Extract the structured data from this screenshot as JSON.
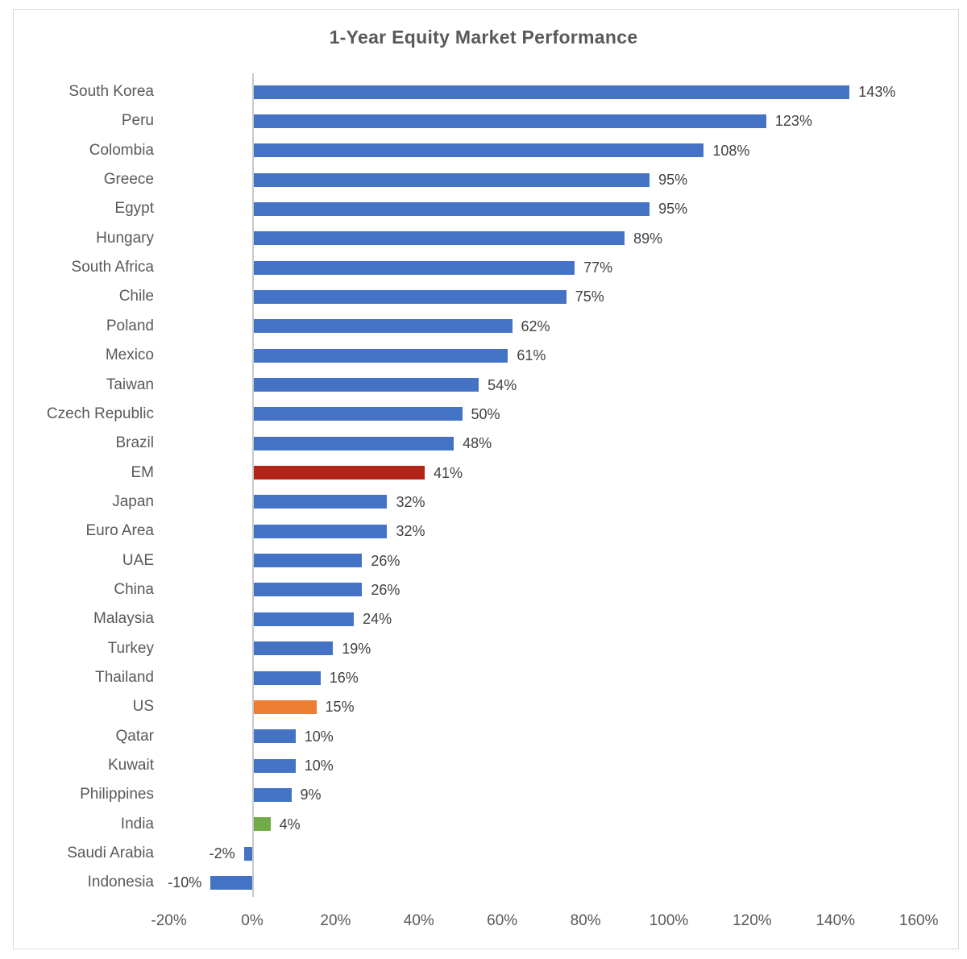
{
  "chart_data": {
    "type": "bar",
    "orientation": "horizontal",
    "title": "1-Year Equity Market Performance",
    "xlabel": "",
    "ylabel": "",
    "xlim": [
      -20,
      160
    ],
    "grid": false,
    "legend": false,
    "bars": [
      {
        "category": "South Korea",
        "value": 143,
        "label": "143%",
        "color": "#4472C4"
      },
      {
        "category": "Peru",
        "value": 123,
        "label": "123%",
        "color": "#4472C4"
      },
      {
        "category": "Colombia",
        "value": 108,
        "label": "108%",
        "color": "#4472C4"
      },
      {
        "category": "Greece",
        "value": 95,
        "label": "95%",
        "color": "#4472C4"
      },
      {
        "category": "Egypt",
        "value": 95,
        "label": "95%",
        "color": "#4472C4"
      },
      {
        "category": "Hungary",
        "value": 89,
        "label": "89%",
        "color": "#4472C4"
      },
      {
        "category": "South Africa",
        "value": 77,
        "label": "77%",
        "color": "#4472C4"
      },
      {
        "category": "Chile",
        "value": 75,
        "label": "75%",
        "color": "#4472C4"
      },
      {
        "category": "Poland",
        "value": 62,
        "label": "62%",
        "color": "#4472C4"
      },
      {
        "category": "Mexico",
        "value": 61,
        "label": "61%",
        "color": "#4472C4"
      },
      {
        "category": "Taiwan",
        "value": 54,
        "label": "54%",
        "color": "#4472C4"
      },
      {
        "category": "Czech Republic",
        "value": 50,
        "label": "50%",
        "color": "#4472C4"
      },
      {
        "category": "Brazil",
        "value": 48,
        "label": "48%",
        "color": "#4472C4"
      },
      {
        "category": "EM",
        "value": 41,
        "label": "41%",
        "color": "#B22417"
      },
      {
        "category": "Japan",
        "value": 32,
        "label": "32%",
        "color": "#4472C4"
      },
      {
        "category": "Euro Area",
        "value": 32,
        "label": "32%",
        "color": "#4472C4"
      },
      {
        "category": "UAE",
        "value": 26,
        "label": "26%",
        "color": "#4472C4"
      },
      {
        "category": "China",
        "value": 26,
        "label": "26%",
        "color": "#4472C4"
      },
      {
        "category": "Malaysia",
        "value": 24,
        "label": "24%",
        "color": "#4472C4"
      },
      {
        "category": "Turkey",
        "value": 19,
        "label": "19%",
        "color": "#4472C4"
      },
      {
        "category": "Thailand",
        "value": 16,
        "label": "16%",
        "color": "#4472C4"
      },
      {
        "category": "US",
        "value": 15,
        "label": "15%",
        "color": "#ED7D31"
      },
      {
        "category": "Qatar",
        "value": 10,
        "label": "10%",
        "color": "#4472C4"
      },
      {
        "category": "Kuwait",
        "value": 10,
        "label": "10%",
        "color": "#4472C4"
      },
      {
        "category": "Philippines",
        "value": 9,
        "label": "9%",
        "color": "#4472C4"
      },
      {
        "category": "India",
        "value": 4,
        "label": "4%",
        "color": "#70AD47"
      },
      {
        "category": "Saudi Arabia",
        "value": -2,
        "label": "-2%",
        "color": "#4472C4"
      },
      {
        "category": "Indonesia",
        "value": -10,
        "label": "-10%",
        "color": "#4472C4"
      }
    ],
    "x_ticks": [
      {
        "value": -20,
        "label": "-20%"
      },
      {
        "value": 0,
        "label": "0%"
      },
      {
        "value": 20,
        "label": "20%"
      },
      {
        "value": 40,
        "label": "40%"
      },
      {
        "value": 60,
        "label": "60%"
      },
      {
        "value": 80,
        "label": "80%"
      },
      {
        "value": 100,
        "label": "100%"
      },
      {
        "value": 120,
        "label": "120%"
      },
      {
        "value": 140,
        "label": "140%"
      },
      {
        "value": 160,
        "label": "160%"
      }
    ]
  },
  "palette": {
    "bar_default": "#4472C4",
    "bar_em_highlight": "#B22417",
    "bar_us_highlight": "#ED7D31",
    "bar_india_highlight": "#70AD47",
    "title_text": "#595959",
    "category_text": "#595959",
    "value_text": "#404040",
    "axis_tick_text": "#595959",
    "axis_line": "#C9C9C9",
    "frame_border": "#D9D9D9",
    "background": "#FFFFFF"
  }
}
